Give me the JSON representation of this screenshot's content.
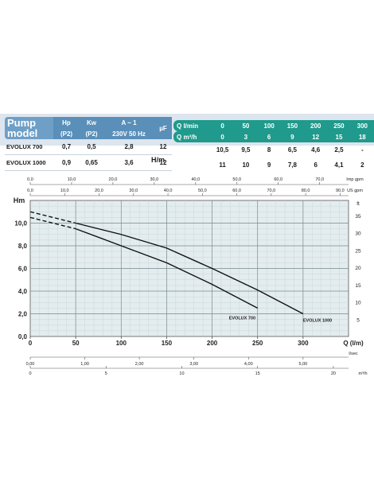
{
  "table": {
    "model_header_line1": "Pump",
    "model_header_line2": "model",
    "hp_header": "Hp",
    "hp_sub": "(P2)",
    "kw_header": "Kw",
    "kw_sub": "(P2)",
    "amp_header": "A ~ 1",
    "amp_sub": "230V 50 Hz",
    "uf_header": "µF",
    "rows": [
      {
        "model": "EVOLUX 700",
        "hp": "0,7",
        "kw": "0,5",
        "amp": "2,8",
        "uf": "12"
      },
      {
        "model": "EVOLUX 1000",
        "hp": "0,9",
        "kw": "0,65",
        "amp": "3,6",
        "uf": "12"
      }
    ],
    "hm_label": "H/m",
    "flow_l_label": "Q l/min",
    "flow_m_label": "Q m³/h",
    "flow_l": [
      "0",
      "50",
      "100",
      "150",
      "200",
      "250",
      "300"
    ],
    "flow_m": [
      "0",
      "3",
      "6",
      "9",
      "12",
      "15",
      "18"
    ],
    "head_700": [
      "10,5",
      "9,5",
      "8",
      "6,5",
      "4,6",
      "2,5",
      "-"
    ],
    "head_1000": [
      "11",
      "10",
      "9",
      "7,8",
      "6",
      "4,1",
      "2"
    ]
  },
  "chart_data": {
    "type": "line",
    "title": "",
    "xlabel": "Q (l/m)",
    "ylabel": "Hm",
    "y2_unit": "ft",
    "xlim": [
      0,
      350
    ],
    "ylim": [
      0,
      12
    ],
    "x_ticks": [
      "0",
      "50",
      "100",
      "150",
      "200",
      "250",
      "300"
    ],
    "y_ticks": [
      "0,0",
      "2,0",
      "4,0",
      "6,0",
      "8,0",
      "10,0"
    ],
    "ft_ticks": [
      "5",
      "10",
      "15",
      "20",
      "25",
      "30",
      "35"
    ],
    "top_axis_imp": {
      "unit": "Imp gpm",
      "ticks": [
        "0,0",
        "10,0",
        "20,0",
        "30,0",
        "40,0",
        "50,0",
        "60,0",
        "70,0"
      ]
    },
    "top_axis_us": {
      "unit": "US gpm",
      "ticks": [
        "0,0",
        "10,0",
        "20,0",
        "30,0",
        "40,0",
        "50,0",
        "60,0",
        "70,0",
        "80,0",
        "90,0"
      ]
    },
    "bottom_axis_ls": {
      "unit": "l/sec",
      "ticks": [
        "0,00",
        "1,00",
        "2,00",
        "3,00",
        "4,00",
        "5,00"
      ]
    },
    "bottom_axis_m3h": {
      "unit": "m³/h",
      "ticks": [
        "0",
        "5",
        "10",
        "15",
        "20"
      ]
    },
    "series": [
      {
        "name": "EVOLUX 700",
        "x": [
          0,
          50,
          100,
          150,
          200,
          250
        ],
        "y": [
          10.5,
          9.5,
          8,
          6.5,
          4.6,
          2.5
        ],
        "dashed_until": 50
      },
      {
        "name": "EVOLUX 1000",
        "x": [
          0,
          50,
          100,
          150,
          200,
          250,
          300
        ],
        "y": [
          11,
          10,
          9,
          7.8,
          6,
          4.1,
          2
        ],
        "dashed_until": 50
      }
    ]
  }
}
